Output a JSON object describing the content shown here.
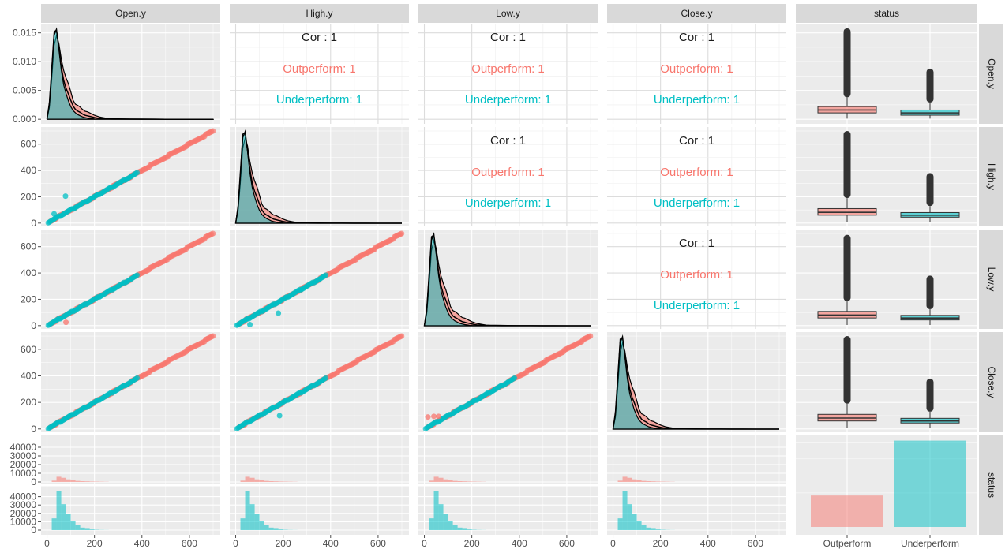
{
  "chart_data": {
    "type": "pairs",
    "variables": [
      "Open.y",
      "High.y",
      "Low.y",
      "Close.y"
    ],
    "group_variable": "status",
    "groups": [
      {
        "name": "Outperform",
        "color": "#F8766D"
      },
      {
        "name": "Underperform",
        "color": "#00BFC4"
      }
    ],
    "columns": [
      "Open.y",
      "High.y",
      "Low.y",
      "Close.y",
      "status"
    ],
    "rows": [
      "Open.y",
      "High.y",
      "Low.y",
      "Close.y",
      "status"
    ],
    "x_axis": {
      "range": [
        -25,
        730
      ],
      "ticks": [
        0,
        200,
        400,
        600
      ],
      "tick_labels": [
        "0",
        "200",
        "400",
        "600"
      ]
    },
    "y_axis_price": {
      "range": [
        -25,
        730
      ],
      "ticks": [
        0,
        200,
        400,
        600
      ],
      "tick_labels": [
        "0",
        "200",
        "400",
        "600"
      ]
    },
    "y_axis_density": {
      "range": [
        -0.0008,
        0.0166
      ],
      "ticks": [
        0,
        0.005,
        0.01,
        0.015
      ],
      "tick_labels": [
        "0.000",
        "0.005",
        "0.010",
        "0.015"
      ]
    },
    "y_axis_count": {
      "ticks": [
        0,
        10000,
        20000,
        30000,
        40000
      ],
      "tick_labels": [
        "0",
        "10000",
        "20000",
        "30000",
        "40000"
      ]
    },
    "correlations": {
      "label": "Cor : 1",
      "lines": [
        "Outperform: 1",
        "Underperform: 1"
      ],
      "panels": [
        {
          "row": 0,
          "col": 1,
          "all": "Cor : 1",
          "Outperform": "Outperform: 1",
          "Underperform": "Underperform: 1"
        },
        {
          "row": 0,
          "col": 2,
          "all": "Cor : 1",
          "Outperform": "Outperform: 1",
          "Underperform": "Underperform: 1"
        },
        {
          "row": 0,
          "col": 3,
          "all": "Cor : 1",
          "Outperform": "Outperform: 1",
          "Underperform": "Underperform: 1"
        },
        {
          "row": 1,
          "col": 2,
          "all": "Cor : 1",
          "Outperform": "Outperform: 1",
          "Underperform": "Underperform: 1"
        },
        {
          "row": 1,
          "col": 3,
          "all": "Cor : 1",
          "Outperform": "Outperform: 1",
          "Underperform": "Underperform: 1"
        },
        {
          "row": 2,
          "col": 3,
          "all": "Cor : 1",
          "Outperform": "Outperform: 1",
          "Underperform": "Underperform: 1"
        }
      ]
    },
    "density": {
      "x": [
        0,
        10,
        20,
        30,
        40,
        50,
        60,
        70,
        80,
        90,
        100,
        110,
        120,
        130,
        140,
        150,
        160,
        170,
        180,
        190,
        200,
        220,
        240,
        260,
        280,
        300,
        350,
        400,
        450,
        500,
        550,
        600,
        650,
        700
      ],
      "Outperform": [
        0,
        0.002,
        0.007,
        0.0128,
        0.0145,
        0.0132,
        0.0105,
        0.0085,
        0.0072,
        0.0062,
        0.0048,
        0.0033,
        0.0026,
        0.0024,
        0.0021,
        0.0017,
        0.0014,
        0.0013,
        0.0011,
        0.0009,
        0.0007,
        0.0004,
        0.00025,
        0.00012,
        0.0001,
        8e-05,
        5e-05,
        3e-05,
        2e-05,
        1e-05,
        1e-05,
        0,
        0,
        0
      ],
      "Underperform": [
        0,
        0.003,
        0.009,
        0.0152,
        0.0155,
        0.0122,
        0.0085,
        0.006,
        0.0045,
        0.0032,
        0.0022,
        0.0015,
        0.0011,
        0.0008,
        0.0006,
        0.0004,
        0.0003,
        0.0002,
        0.00015,
        0.0001,
        5e-05,
        2e-05,
        1e-05,
        0,
        0,
        0,
        0,
        0,
        0,
        0,
        0,
        0,
        0,
        0
      ],
      "All": [
        0,
        0.0025,
        0.0082,
        0.0146,
        0.0156,
        0.0125,
        0.0091,
        0.0068,
        0.0054,
        0.0044,
        0.0033,
        0.0023,
        0.0017,
        0.0014,
        0.0012,
        0.0009,
        0.0007,
        0.0006,
        0.0005,
        0.0004,
        0.0003,
        0.00015,
        0.0001,
        5e-05,
        4e-05,
        3e-05,
        2e-05,
        1e-05,
        1e-05,
        0,
        0,
        0,
        0,
        0
      ]
    },
    "histogram": {
      "bin_centers": [
        30,
        50,
        70,
        90,
        110,
        130,
        150,
        170,
        190,
        210,
        230,
        250
      ],
      "Outperform_counts": [
        1500,
        6000,
        4800,
        3000,
        1800,
        1200,
        900,
        700,
        500,
        400,
        300,
        200
      ],
      "Underperform_counts": [
        14000,
        47000,
        31000,
        19000,
        11000,
        6000,
        3000,
        1500,
        800,
        400,
        200,
        100
      ]
    },
    "status_bar": {
      "categories": [
        "Outperform",
        "Underperform"
      ],
      "counts": [
        18500,
        50800
      ]
    },
    "status_boxplot": {
      "Open.y": {
        "Outperform": {
          "q1": 0.0011,
          "median": 0.0016,
          "q3": 0.0022,
          "whisker_low": 0.0001,
          "whisker_high": 0.0038,
          "outlier_max": 0.0158
        },
        "Underperform": {
          "q1": 0.0007,
          "median": 0.0011,
          "q3": 0.0016,
          "whisker_low": 0.0001,
          "whisker_high": 0.0029,
          "outlier_max": 0.0088
        }
      },
      "High.y": {
        "Outperform": {
          "q1": 60,
          "median": 82,
          "q3": 110,
          "whisker_low": 5,
          "whisker_high": 190,
          "outlier_max": 700
        },
        "Underperform": {
          "q1": 45,
          "median": 60,
          "q3": 80,
          "whisker_low": 5,
          "whisker_high": 130,
          "outlier_max": 380
        }
      },
      "Low.y": {
        "Outperform": {
          "q1": 58,
          "median": 80,
          "q3": 108,
          "whisker_low": 5,
          "whisker_high": 185,
          "outlier_max": 690
        },
        "Underperform": {
          "q1": 43,
          "median": 58,
          "q3": 78,
          "whisker_low": 5,
          "whisker_high": 125,
          "outlier_max": 380
        }
      },
      "Close.y": {
        "Outperform": {
          "q1": 60,
          "median": 82,
          "q3": 110,
          "whisker_low": 5,
          "whisker_high": 190,
          "outlier_max": 700
        },
        "Underperform": {
          "q1": 45,
          "median": 60,
          "q3": 80,
          "whisker_low": 5,
          "whisker_high": 130,
          "outlier_max": 380
        }
      }
    },
    "scatter_outliers": [
      {
        "row": 1,
        "col": 0,
        "x": 78,
        "y": 205,
        "group": "Underperform"
      },
      {
        "row": 1,
        "col": 0,
        "x": 30,
        "y": 70,
        "group": "Underperform"
      },
      {
        "row": 2,
        "col": 0,
        "x": 80,
        "y": 25,
        "group": "Outperform"
      },
      {
        "row": 2,
        "col": 1,
        "x": 180,
        "y": 95,
        "group": "Underperform"
      },
      {
        "row": 2,
        "col": 1,
        "x": 60,
        "y": 8,
        "group": "Underperform"
      },
      {
        "row": 3,
        "col": 1,
        "x": 185,
        "y": 100,
        "group": "Underperform"
      },
      {
        "row": 3,
        "col": 2,
        "x": 15,
        "y": 90,
        "group": "Outperform"
      },
      {
        "row": 3,
        "col": 2,
        "x": 40,
        "y": 95,
        "group": "Outperform"
      },
      {
        "row": 3,
        "col": 2,
        "x": 60,
        "y": 95,
        "group": "Outperform"
      }
    ],
    "grid": true,
    "legend": "none"
  }
}
